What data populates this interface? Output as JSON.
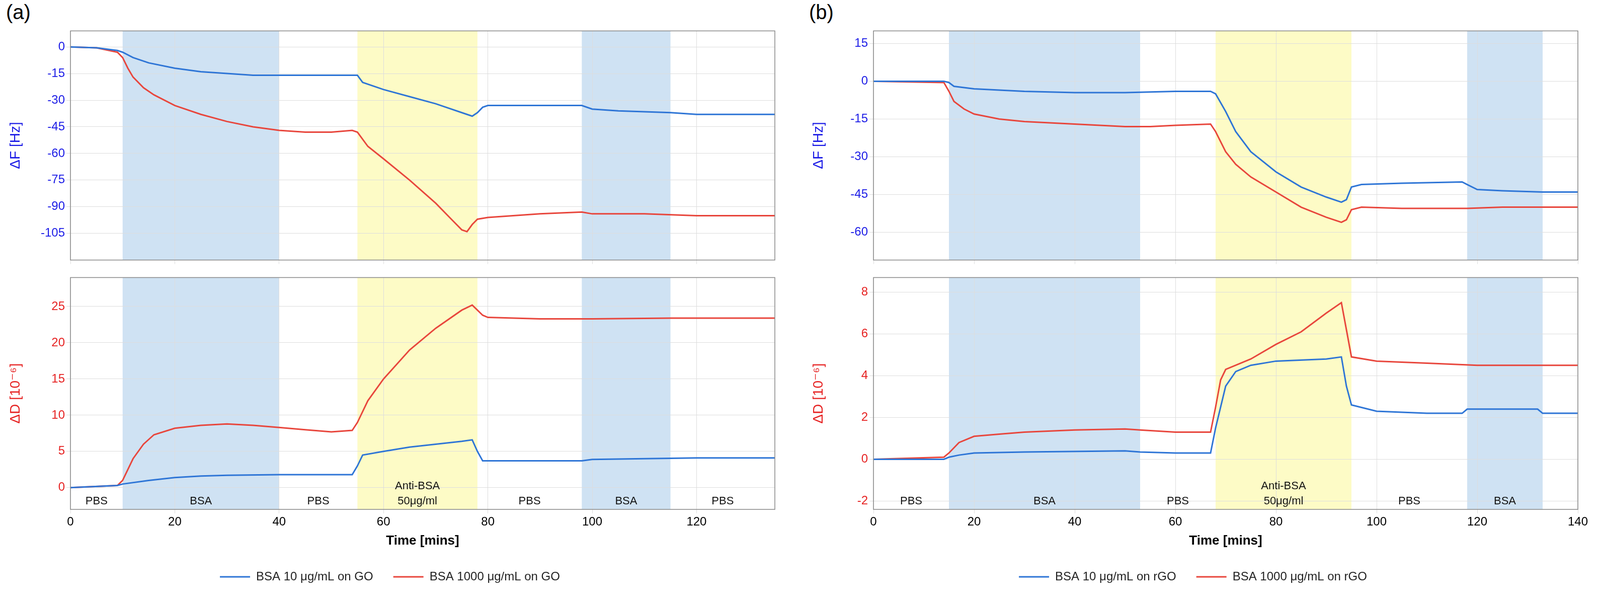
{
  "chart_data": [
    {
      "panel": "(a)",
      "type": "line",
      "x_label": "Time [mins]",
      "xlim": [
        0,
        135
      ],
      "xticks": [
        0,
        20,
        40,
        60,
        80,
        100,
        120
      ],
      "grid": true,
      "legend": "bottom",
      "regions": [
        {
          "start": 0,
          "end": 10,
          "label": "PBS"
        },
        {
          "start": 10,
          "end": 40,
          "label": "BSA",
          "color": "#cfe2f3"
        },
        {
          "start": 40,
          "end": 55,
          "label": "PBS"
        },
        {
          "start": 55,
          "end": 78,
          "label": "Anti-BSA 50μg/ml",
          "color": "#fdfbc6"
        },
        {
          "start": 78,
          "end": 98,
          "label": "PBS"
        },
        {
          "start": 98,
          "end": 115,
          "label": "BSA",
          "color": "#cfe2f3"
        },
        {
          "start": 115,
          "end": 135,
          "label": "PBS"
        }
      ],
      "subplots": [
        {
          "y_label": "ΔF [Hz]",
          "color": "#1a1ae6",
          "ylim": [
            -120,
            9
          ],
          "yticks": [
            0,
            -15,
            -30,
            -45,
            -60,
            -75,
            -90,
            -105
          ],
          "tick_labels": "y",
          "series": [
            {
              "name": "BSA 10 μg/mL on GO",
              "color": "#2e75d6",
              "x": [
                0,
                5,
                9,
                10,
                12,
                15,
                20,
                25,
                30,
                35,
                40,
                45,
                50,
                55,
                56,
                60,
                65,
                70,
                75,
                77,
                78,
                79,
                80,
                90,
                98,
                100,
                105,
                115,
                120,
                135
              ],
              "values": [
                0,
                -0.5,
                -2,
                -3,
                -6,
                -9,
                -12,
                -14,
                -15,
                -16,
                -16,
                -16,
                -16,
                -16,
                -20,
                -24,
                -28,
                -32,
                -37,
                -39,
                -37,
                -34,
                -33,
                -33,
                -33,
                -35,
                -36,
                -37,
                -38,
                -38
              ]
            },
            {
              "name": "BSA 1000 μg/mL on GO",
              "color": "#e8463c",
              "x": [
                0,
                5,
                9,
                10,
                11,
                12,
                14,
                16,
                20,
                25,
                30,
                35,
                40,
                45,
                50,
                54,
                55,
                57,
                60,
                65,
                70,
                73,
                75,
                76,
                77,
                78,
                80,
                90,
                98,
                100,
                110,
                120,
                135
              ],
              "values": [
                0,
                -0.5,
                -3,
                -6,
                -12,
                -17,
                -23,
                -27,
                -33,
                -38,
                -42,
                -45,
                -47,
                -48,
                -48,
                -47,
                -48,
                -56,
                -63,
                -75,
                -88,
                -97,
                -103,
                -104,
                -100,
                -97,
                -96,
                -94,
                -93,
                -94,
                -94,
                -95,
                -95
              ]
            }
          ]
        },
        {
          "y_label": "ΔD [10⁻⁶]",
          "color": "#e62222",
          "ylim": [
            -3,
            29
          ],
          "yticks": [
            0,
            5,
            10,
            15,
            20,
            25
          ],
          "series": [
            {
              "name": "BSA 10 μg/mL on GO",
              "color": "#2e75d6",
              "x": [
                0,
                9,
                10,
                15,
                20,
                25,
                30,
                40,
                54,
                55,
                56,
                60,
                65,
                70,
                75,
                77,
                78,
                79,
                80,
                90,
                98,
                100,
                110,
                120,
                135
              ],
              "values": [
                0,
                0.3,
                0.5,
                1.0,
                1.4,
                1.6,
                1.7,
                1.8,
                1.8,
                3.0,
                4.5,
                5.0,
                5.6,
                6.0,
                6.4,
                6.6,
                5.0,
                3.7,
                3.7,
                3.7,
                3.7,
                3.9,
                4.0,
                4.1,
                4.1
              ]
            },
            {
              "name": "BSA 1000 μg/mL on GO",
              "color": "#e8463c",
              "x": [
                0,
                9,
                10,
                12,
                14,
                16,
                20,
                25,
                30,
                35,
                40,
                45,
                50,
                54,
                55,
                57,
                60,
                65,
                70,
                75,
                77,
                78,
                79,
                80,
                90,
                100,
                115,
                135
              ],
              "values": [
                0,
                0.3,
                1.0,
                4,
                6,
                7.3,
                8.2,
                8.6,
                8.8,
                8.6,
                8.3,
                8.0,
                7.7,
                7.9,
                9,
                12,
                15,
                19,
                22,
                24.5,
                25.2,
                24.5,
                23.8,
                23.5,
                23.3,
                23.3,
                23.4,
                23.4
              ]
            }
          ]
        }
      ]
    },
    {
      "panel": "(b)",
      "type": "line",
      "x_label": "Time [mins]",
      "xlim": [
        0,
        140
      ],
      "xticks": [
        0,
        20,
        40,
        60,
        80,
        100,
        120,
        140
      ],
      "grid": true,
      "legend": "bottom",
      "regions": [
        {
          "start": 0,
          "end": 15,
          "label": "PBS"
        },
        {
          "start": 15,
          "end": 53,
          "label": "BSA",
          "color": "#cfe2f3"
        },
        {
          "start": 53,
          "end": 68,
          "label": "PBS"
        },
        {
          "start": 68,
          "end": 95,
          "label": "Anti-BSA 50μg/ml",
          "color": "#fdfbc6"
        },
        {
          "start": 95,
          "end": 118,
          "label": "PBS"
        },
        {
          "start": 118,
          "end": 133,
          "label": "BSA",
          "color": "#cfe2f3"
        }
      ],
      "subplots": [
        {
          "y_label": "ΔF [Hz]",
          "color": "#1a1ae6",
          "ylim": [
            -71,
            20
          ],
          "yticks": [
            15,
            0,
            -15,
            -30,
            -45,
            -60
          ],
          "tick_labels": "y",
          "series": [
            {
              "name": "BSA 10 μg/mL on rGO",
              "color": "#2e75d6",
              "x": [
                0,
                14,
                15,
                16,
                20,
                30,
                40,
                50,
                60,
                67,
                68,
                70,
                72,
                75,
                80,
                85,
                90,
                93,
                94,
                95,
                97,
                105,
                117,
                118,
                120,
                125,
                133,
                140
              ],
              "values": [
                0,
                0,
                -0.5,
                -2,
                -3,
                -4,
                -4.5,
                -4.5,
                -4,
                -4,
                -5,
                -12,
                -20,
                -28,
                -36,
                -42,
                -46,
                -48,
                -47,
                -42,
                -41,
                -40.5,
                -40,
                -41,
                -43,
                -43.5,
                -44,
                -44
              ]
            },
            {
              "name": "BSA 1000 μg/mL on rGO",
              "color": "#e8463c",
              "x": [
                0,
                14,
                15,
                16,
                18,
                20,
                25,
                30,
                40,
                50,
                53,
                55,
                60,
                67,
                68,
                70,
                72,
                75,
                80,
                85,
                90,
                93,
                94,
                95,
                97,
                105,
                118,
                125,
                140
              ],
              "values": [
                0,
                -0.5,
                -4,
                -8,
                -11,
                -13,
                -15,
                -16,
                -17,
                -18,
                -18,
                -18,
                -17.5,
                -17,
                -20,
                -28,
                -33,
                -38,
                -44,
                -50,
                -54,
                -56,
                -55,
                -51,
                -50,
                -50.5,
                -50.5,
                -50,
                -50
              ]
            }
          ]
        },
        {
          "y_label": "ΔD [10⁻⁶]",
          "color": "#e62222",
          "ylim": [
            -2.4,
            8.7
          ],
          "yticks": [
            -2,
            0,
            2,
            4,
            6,
            8
          ],
          "series": [
            {
              "name": "BSA 10 μg/mL on rGO",
              "color": "#2e75d6",
              "x": [
                0,
                14,
                15,
                17,
                20,
                30,
                50,
                53,
                60,
                67,
                68,
                70,
                72,
                75,
                80,
                90,
                93,
                94,
                95,
                100,
                110,
                117,
                118,
                125,
                132,
                133,
                140
              ],
              "values": [
                0,
                0,
                0.1,
                0.2,
                0.3,
                0.35,
                0.4,
                0.35,
                0.3,
                0.3,
                1.5,
                3.5,
                4.2,
                4.5,
                4.7,
                4.8,
                4.9,
                3.5,
                2.6,
                2.3,
                2.2,
                2.2,
                2.4,
                2.4,
                2.4,
                2.2,
                2.2
              ]
            },
            {
              "name": "BSA 1000 μg/mL on rGO",
              "color": "#e8463c",
              "x": [
                0,
                14,
                15,
                17,
                20,
                25,
                30,
                40,
                50,
                53,
                60,
                67,
                68,
                69,
                70,
                75,
                80,
                85,
                90,
                93,
                94,
                95,
                100,
                110,
                120,
                130,
                140
              ],
              "values": [
                0,
                0.1,
                0.3,
                0.8,
                1.1,
                1.2,
                1.3,
                1.4,
                1.45,
                1.4,
                1.3,
                1.3,
                2.5,
                3.8,
                4.3,
                4.8,
                5.5,
                6.1,
                7.0,
                7.5,
                6.2,
                4.9,
                4.7,
                4.6,
                4.5,
                4.5,
                4.5
              ]
            }
          ]
        }
      ]
    }
  ]
}
